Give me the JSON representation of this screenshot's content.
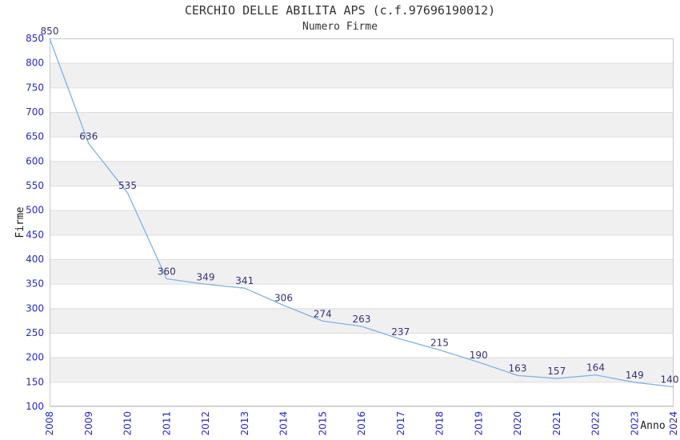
{
  "chart_data": {
    "type": "line",
    "title": "CERCHIO DELLE ABILITA APS (c.f.97696190012)",
    "subtitle": "Numero Firme",
    "xlabel": "Anno",
    "ylabel": "Firme",
    "categories": [
      "2008",
      "2009",
      "2010",
      "2011",
      "2012",
      "2013",
      "2014",
      "2015",
      "2016",
      "2017",
      "2018",
      "2019",
      "2020",
      "2021",
      "2022",
      "2023",
      "2024"
    ],
    "values": [
      850,
      636,
      535,
      360,
      349,
      341,
      306,
      274,
      263,
      237,
      215,
      190,
      163,
      157,
      164,
      149,
      140
    ],
    "ylim": [
      100,
      850
    ],
    "ytick_step": 50,
    "grid": "horizontal-bands",
    "legend": "none",
    "colors": {
      "line": "#7fb2e5",
      "tick_label": "#2626cc",
      "data_label": "#333377",
      "band": "#f0f0f0",
      "gridline": "#dcdcdc",
      "border": "#c8c8c8",
      "title": "#333333",
      "axis_title": "#1a1a1a"
    }
  }
}
